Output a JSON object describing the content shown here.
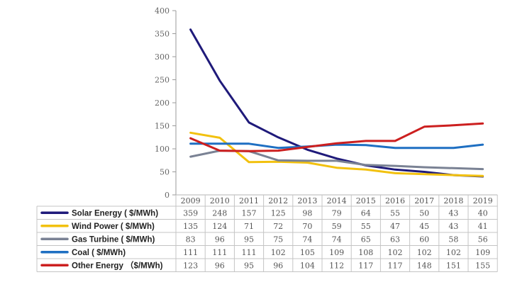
{
  "chart_data": {
    "type": "line",
    "title": "",
    "xlabel": "",
    "ylabel": "",
    "ylim": [
      0,
      400
    ],
    "yticks": [
      0,
      50,
      100,
      150,
      200,
      250,
      300,
      350,
      400
    ],
    "categories": [
      "2009",
      "2010",
      "2011",
      "2012",
      "2013",
      "2014",
      "2015",
      "2016",
      "2017",
      "2018",
      "2019"
    ],
    "grid": false,
    "legend": "data table below chart",
    "series": [
      {
        "name": "Solar Energy ( $/MWh)",
        "color": "#1f1a7a",
        "values": [
          359,
          248,
          157,
          125,
          98,
          79,
          64,
          55,
          50,
          43,
          40
        ]
      },
      {
        "name": "Wind Power  ( $/MWh)",
        "color": "#f2c10f",
        "values": [
          135,
          124,
          71,
          72,
          70,
          59,
          55,
          47,
          45,
          43,
          41
        ]
      },
      {
        "name": "Gas Turbine  ( $/MWh)",
        "color": "#7a8294",
        "values": [
          83,
          96,
          95,
          75,
          74,
          74,
          65,
          63,
          60,
          58,
          56
        ]
      },
      {
        "name": "Coal  ( $/MWh)",
        "color": "#1e6fc2",
        "values": [
          111,
          111,
          111,
          102,
          105,
          109,
          108,
          102,
          102,
          102,
          109
        ]
      },
      {
        "name": "Other Energy  （$/MWh)",
        "color": "#cc1f1f",
        "values": [
          123,
          96,
          95,
          96,
          104,
          112,
          117,
          117,
          148,
          151,
          155
        ]
      }
    ]
  }
}
